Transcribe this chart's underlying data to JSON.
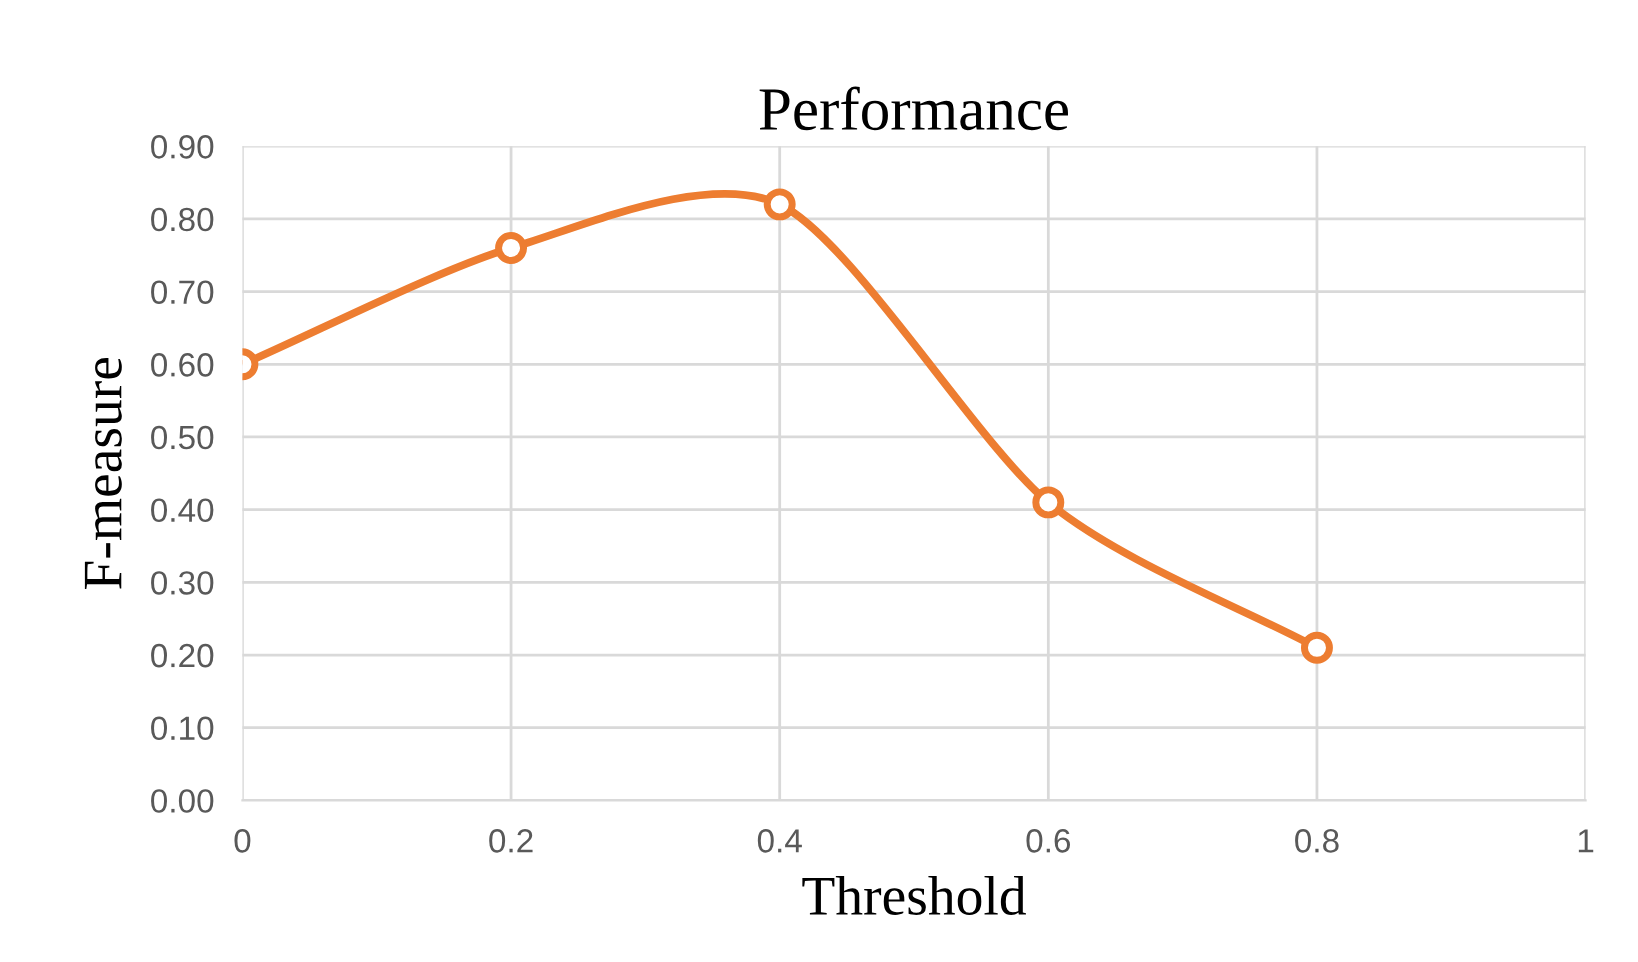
{
  "chart_data": {
    "type": "line",
    "title": "Performance",
    "xlabel": "Threshold",
    "ylabel": "F-measure",
    "x": [
      0,
      0.2,
      0.4,
      0.6,
      0.8
    ],
    "series": [
      {
        "color": "#ed7d31",
        "values": [
          0.6,
          0.76,
          0.82,
          0.41,
          0.21
        ]
      }
    ],
    "xlim": [
      0,
      1
    ],
    "xticks": [
      0,
      0.2,
      0.4,
      0.6,
      0.8,
      1
    ],
    "ylim": [
      0,
      0.9
    ],
    "yticks": [
      {
        "value": 0,
        "label": "0.00"
      },
      {
        "value": 0.1,
        "label": "0.10"
      },
      {
        "value": 0.2,
        "label": "0.20"
      },
      {
        "value": 0.3,
        "label": "0.30"
      },
      {
        "value": 0.4,
        "label": "0.40"
      },
      {
        "value": 0.5,
        "label": "0.50"
      },
      {
        "value": 0.6,
        "label": "0.60"
      },
      {
        "value": 0.7,
        "label": "0.70"
      },
      {
        "value": 0.8,
        "label": "0.80"
      },
      {
        "value": 0.9,
        "label": "0.90"
      }
    ],
    "grid": true,
    "marker": "circle",
    "line_style": "solid"
  }
}
